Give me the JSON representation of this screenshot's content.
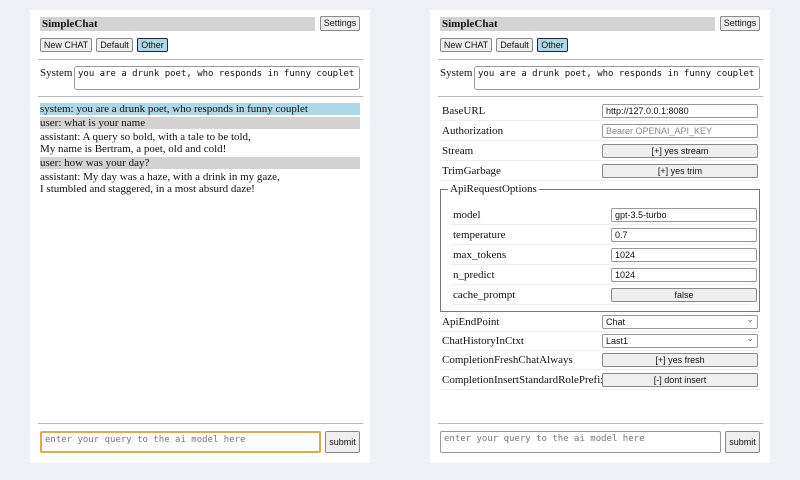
{
  "app_title": "SimpleChat",
  "settings_label": "Settings",
  "buttons": {
    "new_chat": "New CHAT",
    "default": "Default",
    "other": "Other"
  },
  "system_label": "System",
  "system_prompt": "you are a drunk poet, who responds in funny couplet",
  "messages": [
    {
      "role": "system",
      "lines": [
        "system: you are a drunk poet, who responds in funny couplet"
      ]
    },
    {
      "role": "user",
      "lines": [
        "user: what is your name"
      ]
    },
    {
      "role": "assistant",
      "lines": [
        "assistant: A query so bold, with a tale to be told,",
        "My name is Bertram, a poet, old and cold!"
      ]
    },
    {
      "role": "user",
      "lines": [
        "user: how was your day?"
      ]
    },
    {
      "role": "assistant",
      "lines": [
        "assistant: My day was a haze, with a drink in my gaze,",
        "I stumbled and staggered, in a most absurd daze!"
      ]
    }
  ],
  "query_placeholder": "enter your query to the ai model here",
  "submit_label": "submit",
  "settings": {
    "base_url": {
      "label": "BaseURL",
      "value": "http://127.0.0.1:8080"
    },
    "authorization": {
      "label": "Authorization",
      "placeholder": "Bearer OPENAI_API_KEY"
    },
    "stream": {
      "label": "Stream",
      "value": "[+] yes stream"
    },
    "trim_garbage": {
      "label": "TrimGarbage",
      "value": "[+] yes trim"
    },
    "api_request_options": {
      "legend": "ApiRequestOptions",
      "model": {
        "label": "model",
        "value": "gpt-3.5-turbo"
      },
      "temperature": {
        "label": "temperature",
        "value": "0.7"
      },
      "max_tokens": {
        "label": "max_tokens",
        "value": "1024"
      },
      "n_predict": {
        "label": "n_predict",
        "value": "1024"
      },
      "cache_prompt": {
        "label": "cache_prompt",
        "value": "false"
      }
    },
    "api_endpoint": {
      "label": "ApiEndPoint",
      "value": "Chat"
    },
    "chat_history": {
      "label": "ChatHistoryInCtxt",
      "value": "Last1"
    },
    "fresh_chat": {
      "label": "CompletionFreshChatAlways",
      "value": "[+] yes fresh"
    },
    "role_prefix": {
      "label": "CompletionInsertStandardRolePrefix",
      "value": "[-] dont insert"
    }
  }
}
